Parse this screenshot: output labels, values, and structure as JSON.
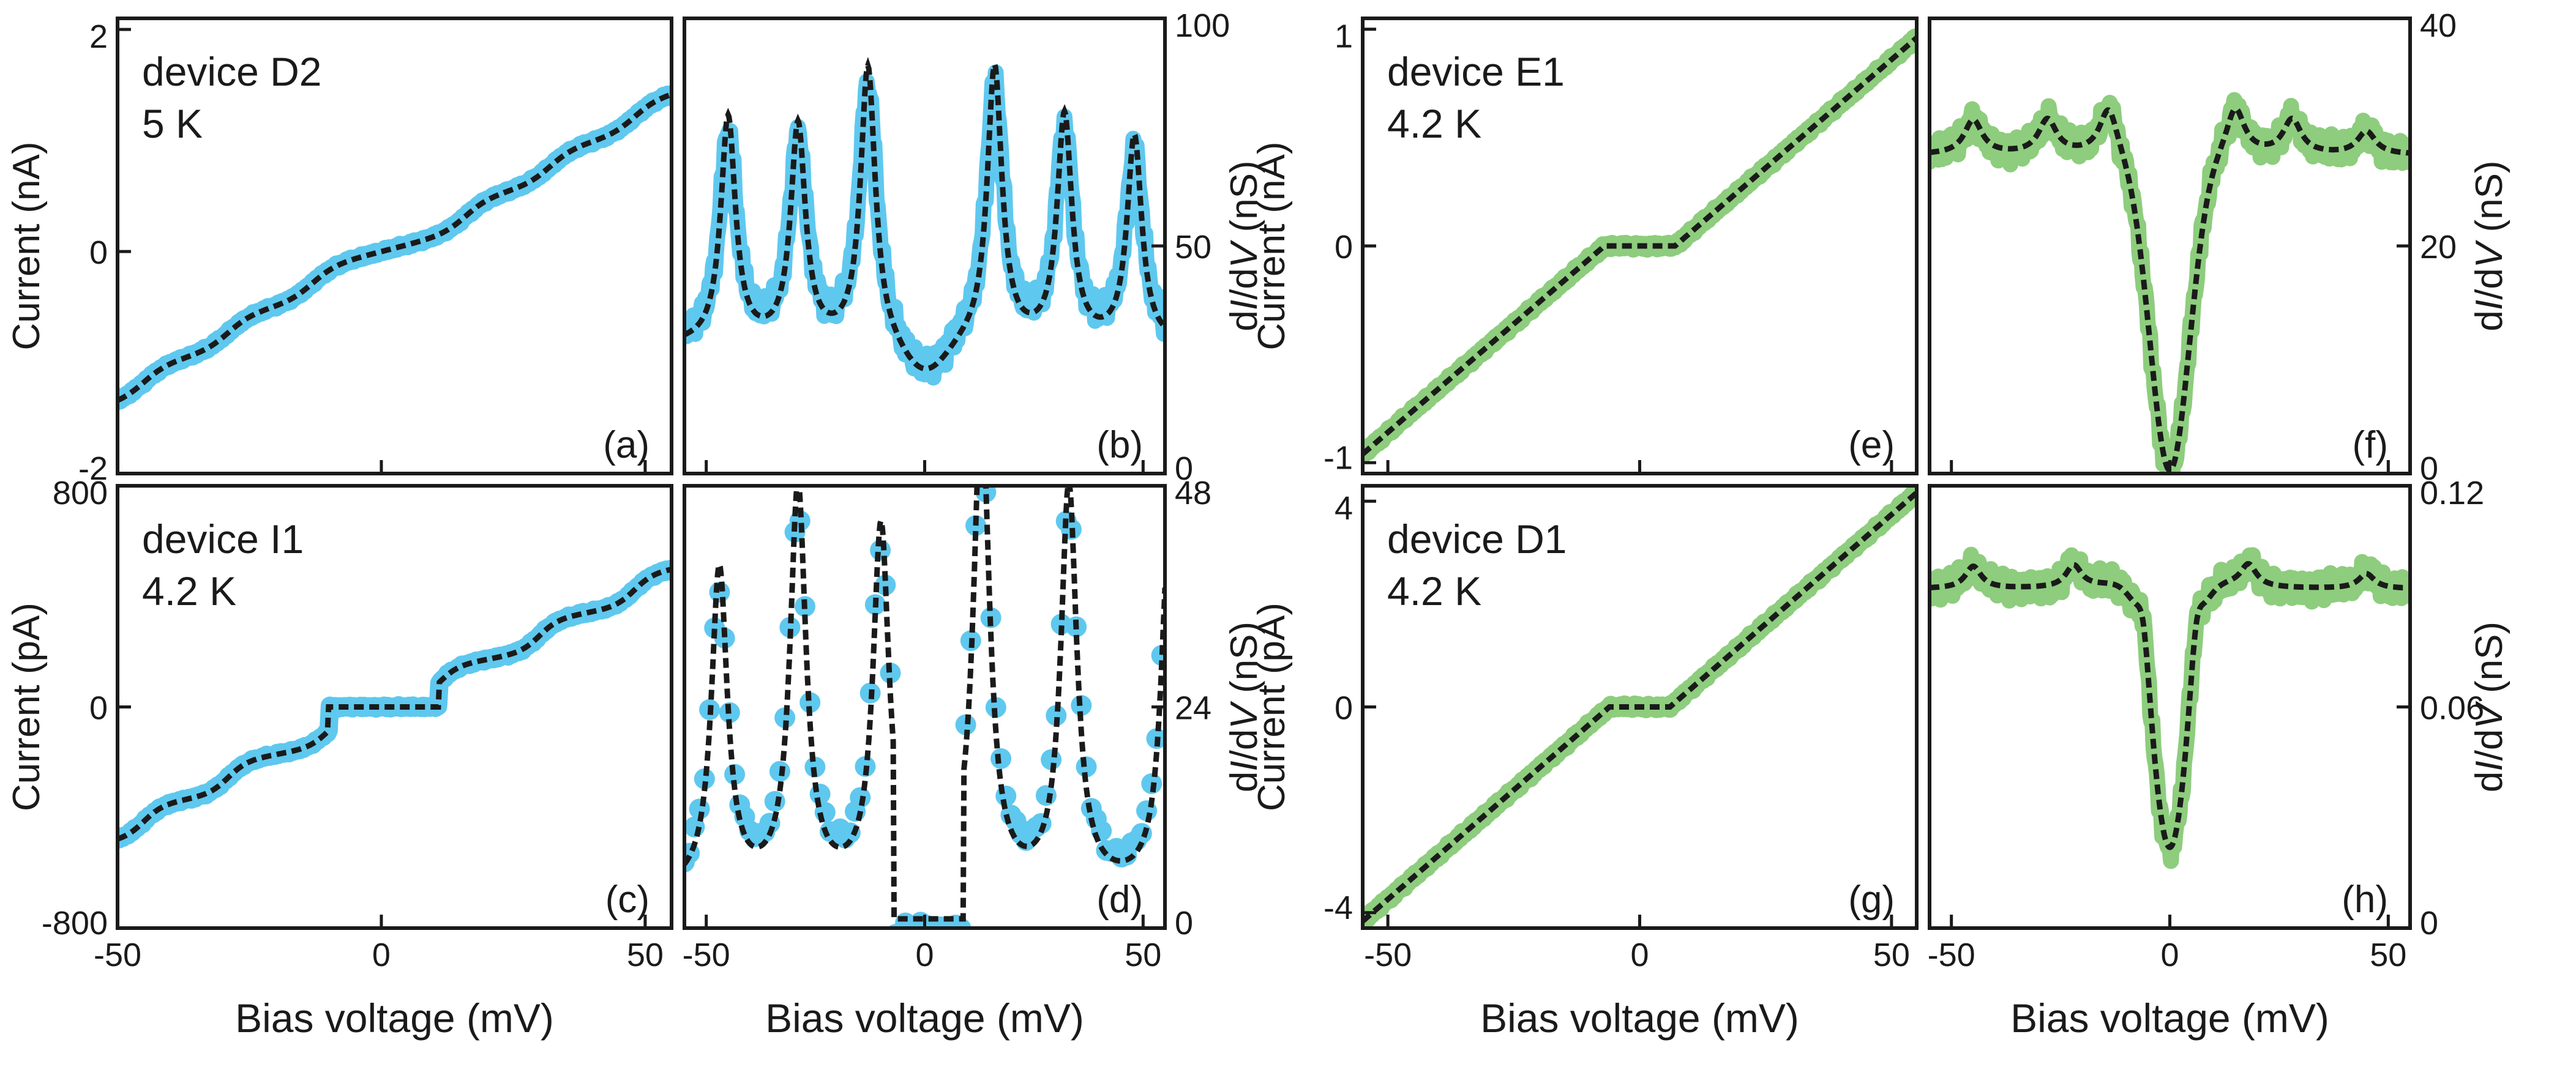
{
  "colors": {
    "blue": "#5fc8ee",
    "green": "#8dcd7d",
    "fit": "#1a1a1a",
    "axis": "#1a1a1a"
  },
  "labels": {
    "bias": "Bias voltage (mV)",
    "cur_na": "Current (nA)",
    "cur_pa": "Current (pA)",
    "didv_prefix": "d",
    "didv_i": "I",
    "didv_mid": "/d",
    "didv_v": "V",
    "didv_suffix": " (nS)"
  },
  "chart_data": [
    {
      "id": "a",
      "type": "line",
      "panel_label": "(a)",
      "annot": [
        "device D2",
        "5 K"
      ],
      "ylabel": "Current (nA)",
      "xlim": [
        -50,
        55
      ],
      "ylim": [
        -2,
        2.1
      ],
      "yticks": [
        2,
        0,
        -2
      ],
      "ytick_labels": [
        "2",
        "0",
        "-2"
      ],
      "xticks": [],
      "xtick_labels": [],
      "series_color": "blue",
      "model": "stairs",
      "params": {
        "centers": [
          -45,
          -29,
          -13,
          16,
          32,
          48
        ],
        "a0": 0.03,
        "a1": 0.33,
        "w": 2.2
      }
    },
    {
      "id": "b",
      "type": "line",
      "panel_label": "(b)",
      "annot": [],
      "ylabel": "dI/dV (nS)",
      "xlim": [
        -55,
        55
      ],
      "ylim": [
        0,
        100
      ],
      "yticks": [
        100,
        50,
        0
      ],
      "ytick_labels": [
        "100",
        "50",
        "0"
      ],
      "xticks": [],
      "xtick_labels": [],
      "series_color": "blue",
      "model": "peaks",
      "params": {
        "base": 28,
        "centers": [
          -45,
          -29,
          -13,
          16,
          32,
          48
        ],
        "amps": [
          46,
          44,
          56,
          56,
          46,
          42
        ],
        "w": 2.4,
        "dip": {
          "x": 0,
          "depth": 8,
          "w": 5
        }
      }
    },
    {
      "id": "c",
      "type": "line",
      "panel_label": "(c)",
      "annot": [
        "device I1",
        "4.2 K"
      ],
      "ylabel": "Current (pA)",
      "xlim": [
        -50,
        55
      ],
      "ylim": [
        -800,
        800
      ],
      "yticks": [
        800,
        0,
        -800
      ],
      "ytick_labels": [
        "800",
        "0",
        "-800"
      ],
      "xticks": [
        -50,
        0,
        50
      ],
      "xtick_labels": [
        "-50",
        "0",
        "50"
      ],
      "series_color": "blue",
      "model": "stairs",
      "params": {
        "centers": [
          -45,
          -29,
          -10,
          11,
          30,
          48
        ],
        "a0": 0,
        "a1": 7.5,
        "w": 1.8,
        "gap": [
          -10,
          11
        ]
      }
    },
    {
      "id": "d",
      "type": "scatter",
      "panel_label": "(d)",
      "annot": [],
      "ylabel": "dI/dV (nS)",
      "xlim": [
        -55,
        55
      ],
      "ylim": [
        0,
        48
      ],
      "yticks": [
        48,
        24,
        0
      ],
      "ytick_labels": [
        "48",
        "24",
        "0"
      ],
      "xticks": [
        -50,
        0,
        50
      ],
      "xtick_labels": [
        "-50",
        "0",
        "50"
      ],
      "series_color": "blue",
      "model": "peaks",
      "params": {
        "base": 4,
        "centers": [
          -47,
          -29,
          -10,
          13,
          33,
          56
        ],
        "amps": [
          32,
          40,
          36,
          48,
          40,
          36
        ],
        "w": 2.6,
        "gap": [
          -7,
          9
        ]
      }
    },
    {
      "id": "e",
      "type": "line",
      "panel_label": "(e)",
      "annot": [
        "device E1",
        "4.2 K"
      ],
      "ylabel": "Current (nA)",
      "xlim": [
        -55,
        55
      ],
      "ylim": [
        -1.05,
        1.05
      ],
      "yticks": [
        1,
        0,
        -1
      ],
      "ytick_labels": [
        "1",
        "0",
        "-1"
      ],
      "xticks": [],
      "xtick_labels": [],
      "series_color": "green",
      "model": "gapline",
      "params": {
        "slope": 0.02,
        "gap": 7
      }
    },
    {
      "id": "f",
      "type": "line",
      "panel_label": "(f)",
      "annot": [],
      "ylabel": "dI/dV (nS)",
      "xlim": [
        -55,
        55
      ],
      "ylim": [
        0,
        40
      ],
      "yticks": [
        40,
        20,
        0
      ],
      "ytick_labels": [
        "40",
        "20",
        "0"
      ],
      "xticks": [],
      "xtick_labels": [],
      "series_color": "green",
      "model": "dip",
      "params": {
        "base": 28,
        "depth": 28,
        "w": 4.5,
        "bumps": [
          [
            -45,
            3
          ],
          [
            -28,
            3
          ],
          [
            -14,
            4
          ],
          [
            15,
            4
          ],
          [
            28,
            3
          ],
          [
            45,
            2
          ]
        ],
        "bw": 2.5
      }
    },
    {
      "id": "g",
      "type": "line",
      "panel_label": "(g)",
      "annot": [
        "device D1",
        "4.2 K"
      ],
      "ylabel": "Current (pA)",
      "xlim": [
        -55,
        55
      ],
      "ylim": [
        -4.3,
        4.3
      ],
      "yticks": [
        4,
        0,
        -4
      ],
      "ytick_labels": [
        "4",
        "0",
        "-4"
      ],
      "xticks": [
        -50,
        0,
        50
      ],
      "xtick_labels": [
        "-50",
        "0",
        "50"
      ],
      "series_color": "green",
      "model": "gapline",
      "params": {
        "slope": 0.085,
        "gap": 6
      }
    },
    {
      "id": "h",
      "type": "line",
      "panel_label": "(h)",
      "annot": [],
      "ylabel": "dI/dV (nS)",
      "xlim": [
        -55,
        55
      ],
      "ylim": [
        0,
        0.12
      ],
      "yticks": [
        0.12,
        0.06,
        0
      ],
      "ytick_labels": [
        "0.12",
        "0.06",
        "0"
      ],
      "xticks": [
        -50,
        0,
        50
      ],
      "xtick_labels": [
        "-50",
        "0",
        "50"
      ],
      "series_color": "green",
      "model": "dip",
      "params": {
        "base": 0.092,
        "depth": 0.075,
        "w": 4.5,
        "bumps": [
          [
            -45,
            0.006
          ],
          [
            -22,
            0.006
          ],
          [
            -6,
            0.02
          ],
          [
            6,
            0.02
          ],
          [
            18,
            0.006
          ],
          [
            45,
            0.004
          ]
        ],
        "bw": 2.2
      }
    }
  ]
}
